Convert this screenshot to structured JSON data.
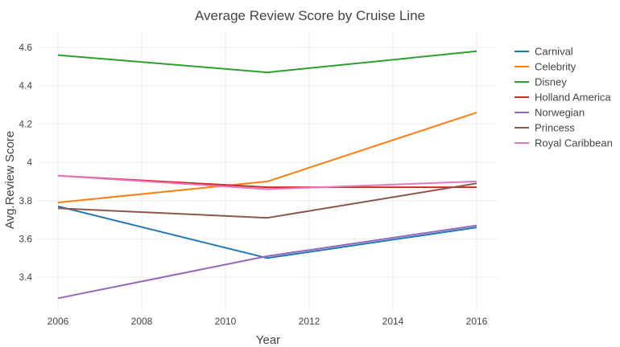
{
  "chart_data": {
    "type": "line",
    "title": "Average Review Score by Cruise Line",
    "xlabel": "Year",
    "ylabel": "Avg.Review Score",
    "x": [
      2006,
      2011,
      2016
    ],
    "xlim": [
      2005.5,
      2016.5
    ],
    "ylim": [
      3.22,
      4.68
    ],
    "xticks": [
      2006,
      2008,
      2010,
      2012,
      2014,
      2016
    ],
    "yticks": [
      3.4,
      3.6,
      3.8,
      4,
      4.2,
      4.4,
      4.6
    ],
    "xtick_labels": [
      "2006",
      "2008",
      "2010",
      "2012",
      "2014",
      "2016"
    ],
    "ytick_labels": [
      "3.4",
      "3.6",
      "3.8",
      "4",
      "4.2",
      "4.4",
      "4.6"
    ],
    "grid": true,
    "legend_position": "right",
    "series": [
      {
        "name": "Carnival",
        "color": "#1f77b4",
        "values": [
          3.77,
          3.5,
          3.66
        ]
      },
      {
        "name": "Celebrity",
        "color": "#ff7f0e",
        "values": [
          3.79,
          3.9,
          4.26
        ]
      },
      {
        "name": "Disney",
        "color": "#2ca02c",
        "values": [
          4.56,
          4.47,
          4.58
        ]
      },
      {
        "name": "Holland America",
        "color": "#d62728",
        "values": [
          3.93,
          3.87,
          3.87
        ]
      },
      {
        "name": "Norwegian",
        "color": "#9467bd",
        "values": [
          3.29,
          3.51,
          3.67
        ]
      },
      {
        "name": "Princess",
        "color": "#8c564b",
        "values": [
          3.76,
          3.71,
          3.89
        ]
      },
      {
        "name": "Royal Caribbean",
        "color": "#e377c2",
        "values": [
          3.93,
          3.86,
          3.9
        ]
      }
    ]
  }
}
